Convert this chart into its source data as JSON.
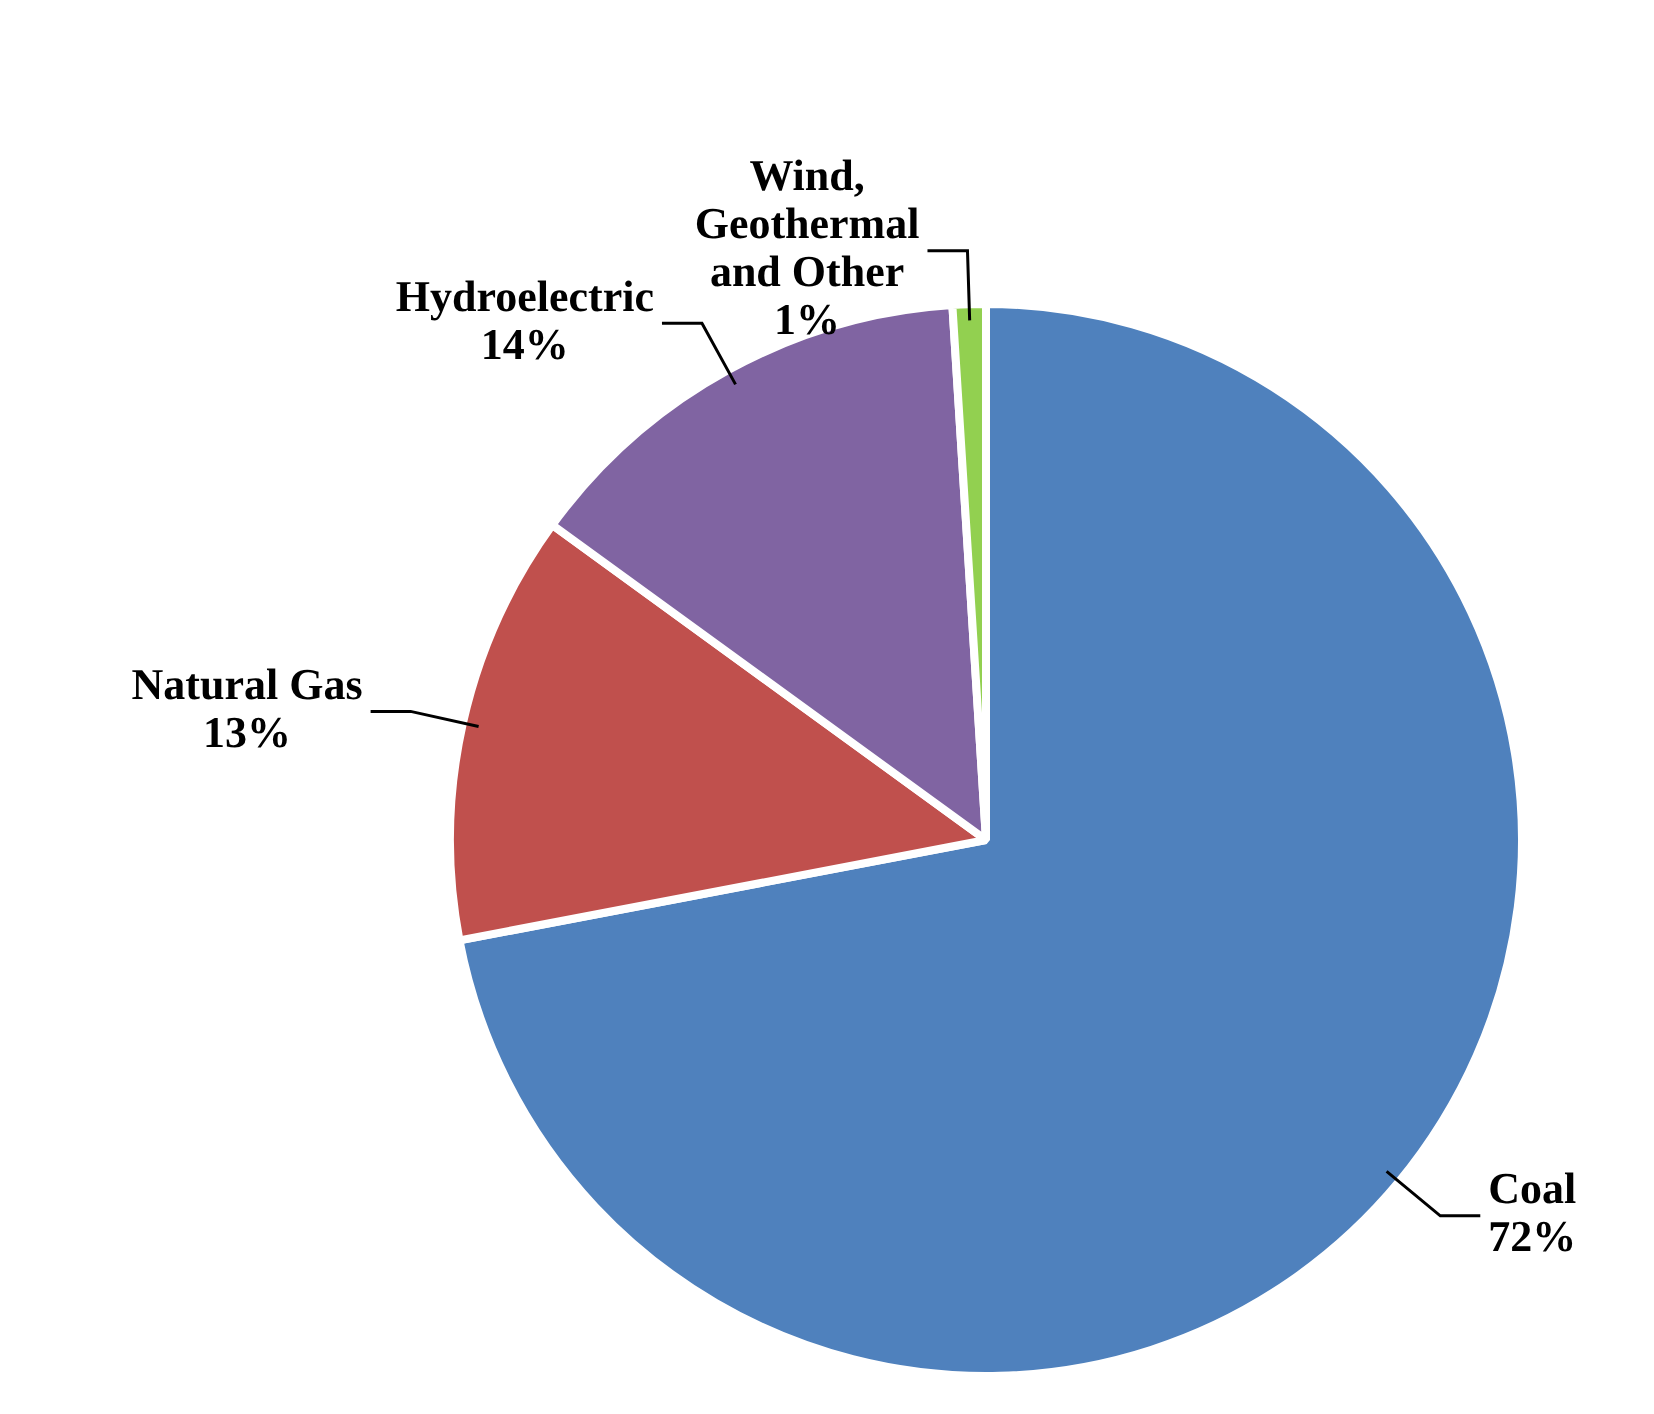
{
  "chart_data": {
    "type": "pie",
    "categories": [
      "Coal",
      "Natural Gas",
      "Hydroelectric",
      "Wind, Geothermal and Other"
    ],
    "values": [
      72,
      13,
      14,
      1
    ],
    "colors": [
      "#4f81bd",
      "#c0504d",
      "#8064a2",
      "#92d050"
    ],
    "value_labels": [
      "72%",
      "13%",
      "14%",
      "1%"
    ],
    "legend": false
  }
}
